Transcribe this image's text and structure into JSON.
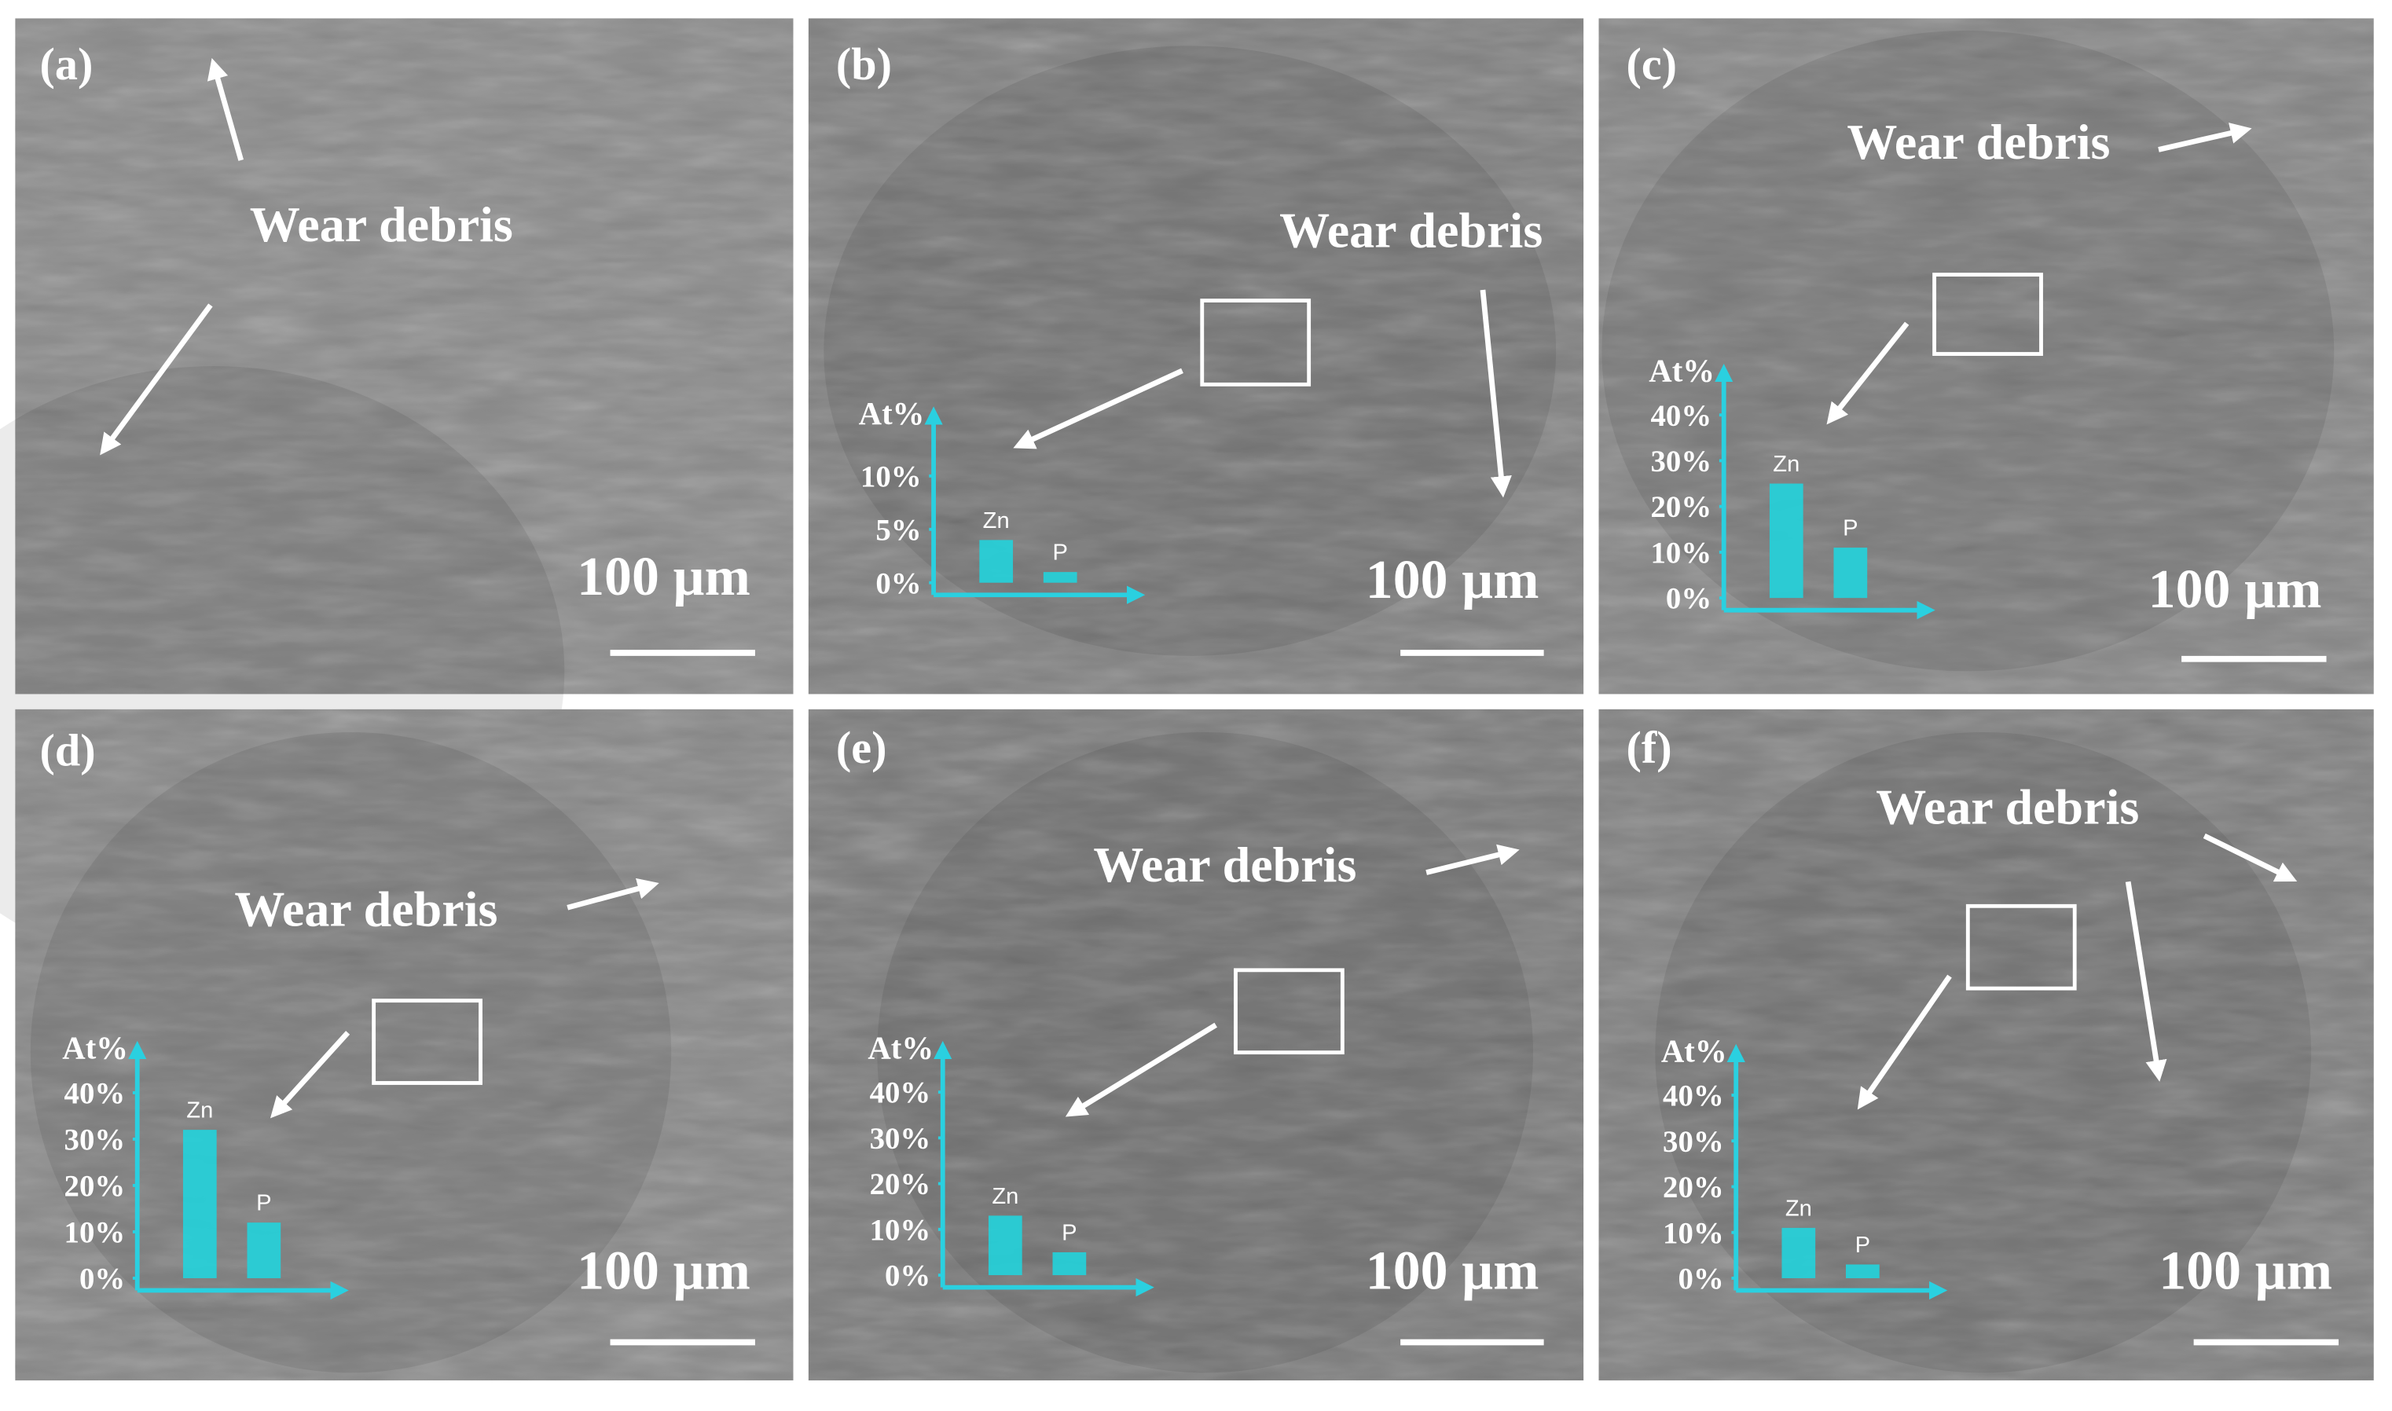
{
  "panels": [
    {
      "label": "(a)",
      "annotation": "Wear debris",
      "scale": "100 µm"
    },
    {
      "label": "(b)",
      "annotation": "Wear debris",
      "scale": "100 µm"
    },
    {
      "label": "(c)",
      "annotation": "Wear debris",
      "scale": "100 µm"
    },
    {
      "label": "(d)",
      "annotation": "Wear debris",
      "scale": "100 µm"
    },
    {
      "label": "(e)",
      "annotation": "Wear debris",
      "scale": "100 µm"
    },
    {
      "label": "(f)",
      "annotation": "Wear debris",
      "scale": "100 µm"
    }
  ],
  "chart_data": [
    {
      "type": "bar",
      "y_label": "At%",
      "categories": [
        "Zn",
        "P"
      ],
      "values": [
        4,
        1
      ],
      "color": "#22d3dc",
      "ylim": [
        0,
        16
      ],
      "yticks": [
        {
          "value": 0,
          "label": "0%"
        },
        {
          "value": 5,
          "label": "5%"
        },
        {
          "value": 10,
          "label": "10%"
        }
      ]
    },
    {
      "type": "bar",
      "y_label": "At%",
      "categories": [
        "Zn",
        "P"
      ],
      "values": [
        25,
        11
      ],
      "color": "#22d3dc",
      "ylim": [
        0,
        50
      ],
      "yticks": [
        {
          "value": 0,
          "label": "0%"
        },
        {
          "value": 10,
          "label": "10%"
        },
        {
          "value": 20,
          "label": "20%"
        },
        {
          "value": 30,
          "label": "30%"
        },
        {
          "value": 40,
          "label": "40%"
        }
      ]
    },
    {
      "type": "bar",
      "y_label": "At%",
      "categories": [
        "Zn",
        "P"
      ],
      "values": [
        32,
        12
      ],
      "color": "#22d3dc",
      "ylim": [
        0,
        50
      ],
      "yticks": [
        {
          "value": 0,
          "label": "0%"
        },
        {
          "value": 10,
          "label": "10%"
        },
        {
          "value": 20,
          "label": "20%"
        },
        {
          "value": 30,
          "label": "30%"
        },
        {
          "value": 40,
          "label": "40%"
        }
      ]
    },
    {
      "type": "bar",
      "y_label": "At%",
      "categories": [
        "Zn",
        "P"
      ],
      "values": [
        13,
        5
      ],
      "color": "#22d3dc",
      "ylim": [
        0,
        50
      ],
      "yticks": [
        {
          "value": 0,
          "label": "0%"
        },
        {
          "value": 10,
          "label": "10%"
        },
        {
          "value": 20,
          "label": "20%"
        },
        {
          "value": 30,
          "label": "30%"
        },
        {
          "value": 40,
          "label": "40%"
        }
      ]
    },
    {
      "type": "bar",
      "y_label": "At%",
      "categories": [
        "Zn",
        "P"
      ],
      "values": [
        11,
        3
      ],
      "color": "#22d3dc",
      "ylim": [
        0,
        50
      ],
      "yticks": [
        {
          "value": 0,
          "label": "0%"
        },
        {
          "value": 10,
          "label": "10%"
        },
        {
          "value": 20,
          "label": "20%"
        },
        {
          "value": 30,
          "label": "30%"
        },
        {
          "value": 40,
          "label": "40%"
        }
      ]
    }
  ]
}
